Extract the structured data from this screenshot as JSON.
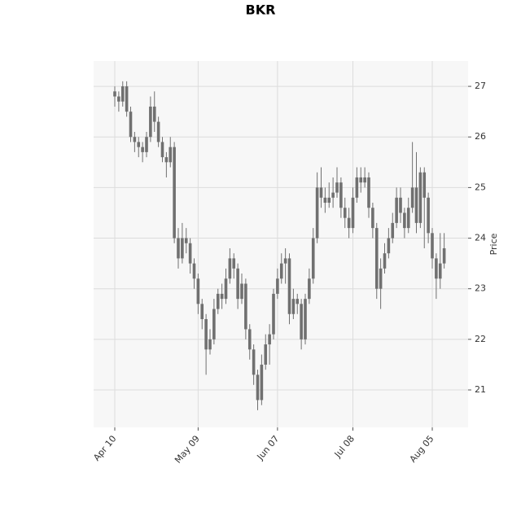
{
  "chart_data": {
    "type": "candlestick",
    "title": "BKR",
    "y_label": "Price",
    "categories": [
      "Apr 10",
      null,
      null,
      null,
      null,
      null,
      null,
      null,
      null,
      null,
      null,
      null,
      null,
      null,
      null,
      null,
      null,
      null,
      null,
      null,
      null,
      "May 09",
      null,
      null,
      null,
      null,
      null,
      null,
      null,
      null,
      null,
      null,
      null,
      null,
      null,
      null,
      null,
      null,
      null,
      null,
      null,
      "Jun 07",
      null,
      null,
      null,
      null,
      null,
      null,
      null,
      null,
      null,
      null,
      null,
      null,
      null,
      null,
      null,
      null,
      null,
      null,
      "Jul 08",
      null,
      null,
      null,
      null,
      null,
      null,
      null,
      null,
      null,
      null,
      null,
      null,
      null,
      null,
      null,
      null,
      null,
      null,
      null,
      "Aug 05",
      null,
      null,
      null
    ],
    "open": [
      26.9,
      26.8,
      26.7,
      27.0,
      26.5,
      26.0,
      25.9,
      25.8,
      25.7,
      26.0,
      26.6,
      26.3,
      25.9,
      25.6,
      25.5,
      25.8,
      24.0,
      23.6,
      24.0,
      23.9,
      23.5,
      23.2,
      22.7,
      22.4,
      21.8,
      22.0,
      22.6,
      22.9,
      22.8,
      23.2,
      23.6,
      23.4,
      22.8,
      23.1,
      22.2,
      21.8,
      21.3,
      20.8,
      21.5,
      21.9,
      22.1,
      22.9,
      23.2,
      23.5,
      23.6,
      22.5,
      22.8,
      22.7,
      22.0,
      22.8,
      23.2,
      24.0,
      25.0,
      24.8,
      24.7,
      24.8,
      24.9,
      25.1,
      24.6,
      24.4,
      24.2,
      24.8,
      25.2,
      25.1,
      25.2,
      24.6,
      24.2,
      23.0,
      23.4,
      23.7,
      24.0,
      24.3,
      24.8,
      24.5,
      24.2,
      24.6,
      25.0,
      24.3,
      25.3,
      24.8,
      24.1,
      23.6,
      23.2,
      23.5
    ],
    "high": [
      27.0,
      26.9,
      27.1,
      27.1,
      26.6,
      26.1,
      26.0,
      25.9,
      26.1,
      26.8,
      26.9,
      26.4,
      26.0,
      25.7,
      26.0,
      25.9,
      24.2,
      24.3,
      24.2,
      24.0,
      23.6,
      23.3,
      22.8,
      22.5,
      22.2,
      22.8,
      23.0,
      23.1,
      23.4,
      23.8,
      23.7,
      23.5,
      23.3,
      23.2,
      22.3,
      21.9,
      21.4,
      21.7,
      22.1,
      22.3,
      23.0,
      23.4,
      23.7,
      23.8,
      23.7,
      23.0,
      22.9,
      22.8,
      22.9,
      23.4,
      24.2,
      25.3,
      25.4,
      25.0,
      25.1,
      25.2,
      25.4,
      25.2,
      24.8,
      24.6,
      25.0,
      25.4,
      25.4,
      25.4,
      25.3,
      24.7,
      24.3,
      23.6,
      23.9,
      24.2,
      24.5,
      25.0,
      25.0,
      24.6,
      24.8,
      25.9,
      25.7,
      25.4,
      25.4,
      24.9,
      24.2,
      23.7,
      24.1,
      24.1
    ],
    "low": [
      26.6,
      26.5,
      26.6,
      26.4,
      25.9,
      25.7,
      25.6,
      25.5,
      25.6,
      25.9,
      26.1,
      25.8,
      25.5,
      25.2,
      25.4,
      23.9,
      23.4,
      23.5,
      23.7,
      23.3,
      23.0,
      22.5,
      22.2,
      21.3,
      21.7,
      21.9,
      22.5,
      22.6,
      22.7,
      23.1,
      23.2,
      22.6,
      22.7,
      22.0,
      21.6,
      21.1,
      20.6,
      20.7,
      21.4,
      21.5,
      22.0,
      22.8,
      23.1,
      23.1,
      22.3,
      22.4,
      22.5,
      21.8,
      21.9,
      22.7,
      23.1,
      23.9,
      24.6,
      24.5,
      24.6,
      24.6,
      24.8,
      24.4,
      24.2,
      24.0,
      24.1,
      24.7,
      24.9,
      25.0,
      24.4,
      24.0,
      22.8,
      22.6,
      23.3,
      23.6,
      23.9,
      24.2,
      24.3,
      24.0,
      24.1,
      24.5,
      24.1,
      24.2,
      23.8,
      23.9,
      23.4,
      22.8,
      23.0,
      23.4
    ],
    "close": [
      26.8,
      26.7,
      27.0,
      26.5,
      26.0,
      25.9,
      25.8,
      25.7,
      26.0,
      26.6,
      26.3,
      25.9,
      25.6,
      25.5,
      25.8,
      24.0,
      23.6,
      24.0,
      23.9,
      23.5,
      23.2,
      22.7,
      22.4,
      21.8,
      22.0,
      22.6,
      22.9,
      22.8,
      23.2,
      23.6,
      23.4,
      22.8,
      23.1,
      22.2,
      21.8,
      21.3,
      20.8,
      21.5,
      21.9,
      22.1,
      22.9,
      23.2,
      23.5,
      23.6,
      22.5,
      22.8,
      22.7,
      22.0,
      22.8,
      23.2,
      24.0,
      25.0,
      24.8,
      24.7,
      24.8,
      24.9,
      25.1,
      24.6,
      24.4,
      24.2,
      24.8,
      25.2,
      25.1,
      25.2,
      24.6,
      24.2,
      23.0,
      23.4,
      23.7,
      24.0,
      24.3,
      24.8,
      24.5,
      24.2,
      24.6,
      25.0,
      24.3,
      25.3,
      24.8,
      24.1,
      23.6,
      23.2,
      23.5,
      23.8
    ],
    "color": "#707070",
    "ylim": [
      20.26,
      27.5
    ],
    "yticks": [
      21,
      22,
      23,
      24,
      25,
      26,
      27
    ],
    "grid": true
  }
}
